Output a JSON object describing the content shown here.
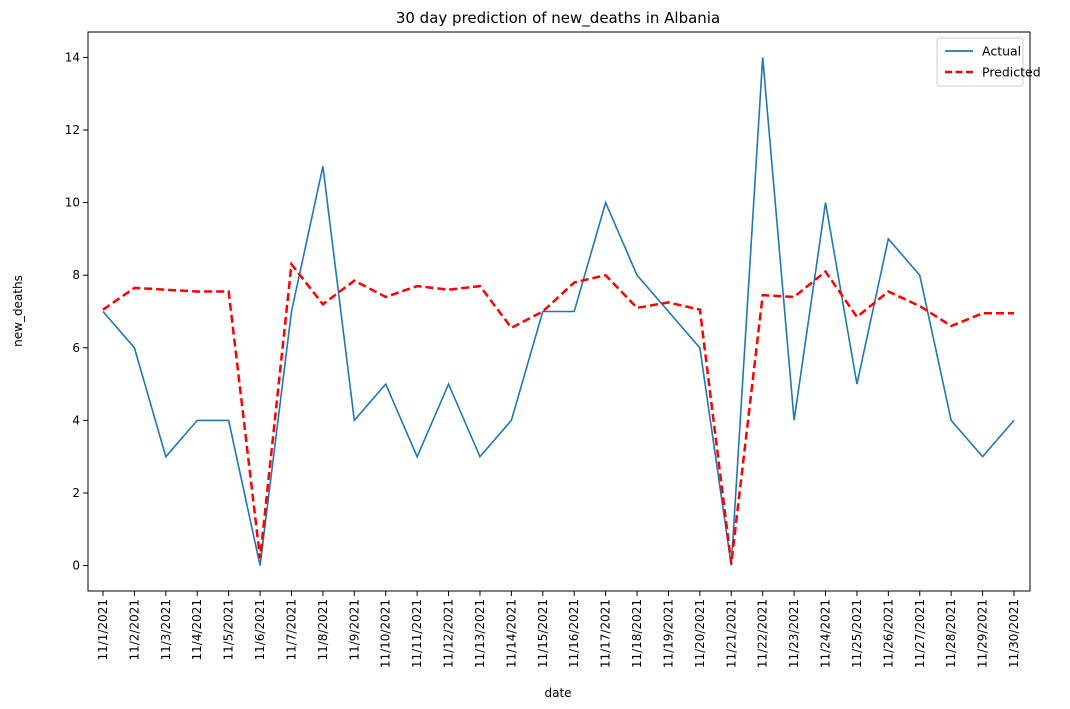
{
  "chart_data": {
    "type": "line",
    "title": "30 day prediction of new_deaths in Albania",
    "xlabel": "date",
    "ylabel": "new_deaths",
    "x": [
      "11/1/2021",
      "11/2/2021",
      "11/3/2021",
      "11/4/2021",
      "11/5/2021",
      "11/6/2021",
      "11/7/2021",
      "11/8/2021",
      "11/9/2021",
      "11/10/2021",
      "11/11/2021",
      "11/12/2021",
      "11/13/2021",
      "11/14/2021",
      "11/15/2021",
      "11/16/2021",
      "11/17/2021",
      "11/18/2021",
      "11/19/2021",
      "11/20/2021",
      "11/21/2021",
      "11/22/2021",
      "11/23/2021",
      "11/24/2021",
      "11/25/2021",
      "11/26/2021",
      "11/27/2021",
      "11/28/2021",
      "11/29/2021",
      "11/30/2021"
    ],
    "ylim": [
      -0.7,
      14.7
    ],
    "yticks": [
      0,
      2,
      4,
      6,
      8,
      10,
      12,
      14
    ],
    "grid": false,
    "legend_position": "top-right",
    "series": [
      {
        "name": "Actual",
        "color": "#1f77b4",
        "style": "solid",
        "values": [
          7,
          6,
          3,
          4,
          4,
          0,
          7,
          11,
          4,
          5,
          3,
          5,
          3,
          4,
          7,
          7,
          10,
          8,
          7,
          6,
          0,
          14,
          4,
          10,
          5,
          9,
          8,
          4,
          3,
          4
        ]
      },
      {
        "name": "Predicted",
        "color": "#ff0000",
        "style": "dashed",
        "values": [
          7.05,
          7.65,
          7.6,
          7.55,
          7.55,
          0.2,
          8.3,
          7.2,
          7.85,
          7.4,
          7.7,
          7.6,
          7.7,
          6.55,
          7.0,
          7.8,
          8.0,
          7.1,
          7.25,
          7.05,
          0.05,
          7.45,
          7.4,
          8.1,
          6.85,
          7.55,
          7.15,
          6.6,
          6.95,
          6.95
        ]
      }
    ]
  }
}
